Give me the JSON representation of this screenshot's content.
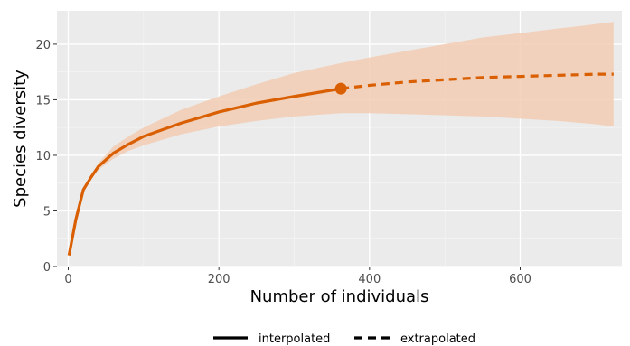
{
  "chart_data": {
    "type": "line",
    "xlabel": "Number of individuals",
    "ylabel": "Species diversity",
    "xlim": [
      -15,
      735
    ],
    "ylim": [
      0,
      23
    ],
    "x_ticks": [
      0,
      200,
      400,
      600
    ],
    "y_ticks": [
      0,
      5,
      10,
      15,
      20
    ],
    "grid": true,
    "legend_position": "bottom",
    "colors": {
      "line": "#d95f02",
      "ribbon": "#f2ccb3",
      "panel": "#ebebeb",
      "grid_major": "#ffffff",
      "grid_minor": "#f5f5f5"
    },
    "observed_point": {
      "x": 362,
      "y": 16.0
    },
    "series": [
      {
        "name": "interpolated",
        "linestyle": "solid",
        "x": [
          1,
          10,
          20,
          30,
          40,
          60,
          80,
          100,
          150,
          200,
          250,
          300,
          362
        ],
        "y": [
          1.0,
          4.2,
          6.9,
          8.0,
          9.0,
          10.2,
          11.0,
          11.7,
          12.9,
          13.9,
          14.7,
          15.3,
          16.0
        ],
        "lower": [
          1.0,
          4.2,
          6.9,
          7.8,
          8.7,
          9.7,
          10.4,
          10.9,
          11.9,
          12.6,
          13.1,
          13.5,
          13.8
        ],
        "upper": [
          1.0,
          4.2,
          6.9,
          8.2,
          9.3,
          10.8,
          11.7,
          12.5,
          14.1,
          15.3,
          16.4,
          17.4,
          18.3
        ]
      },
      {
        "name": "extrapolated",
        "linestyle": "dashed",
        "x": [
          362,
          400,
          450,
          500,
          550,
          600,
          650,
          700,
          724
        ],
        "y": [
          16.0,
          16.3,
          16.6,
          16.8,
          17.0,
          17.1,
          17.2,
          17.3,
          17.3
        ],
        "lower": [
          13.8,
          13.8,
          13.7,
          13.6,
          13.5,
          13.3,
          13.1,
          12.8,
          12.6
        ],
        "upper": [
          18.3,
          18.8,
          19.4,
          20.0,
          20.6,
          21.0,
          21.4,
          21.8,
          22.0
        ]
      }
    ],
    "legend": [
      {
        "label": "interpolated",
        "style": "solid"
      },
      {
        "label": "extrapolated",
        "style": "dashed"
      }
    ]
  }
}
